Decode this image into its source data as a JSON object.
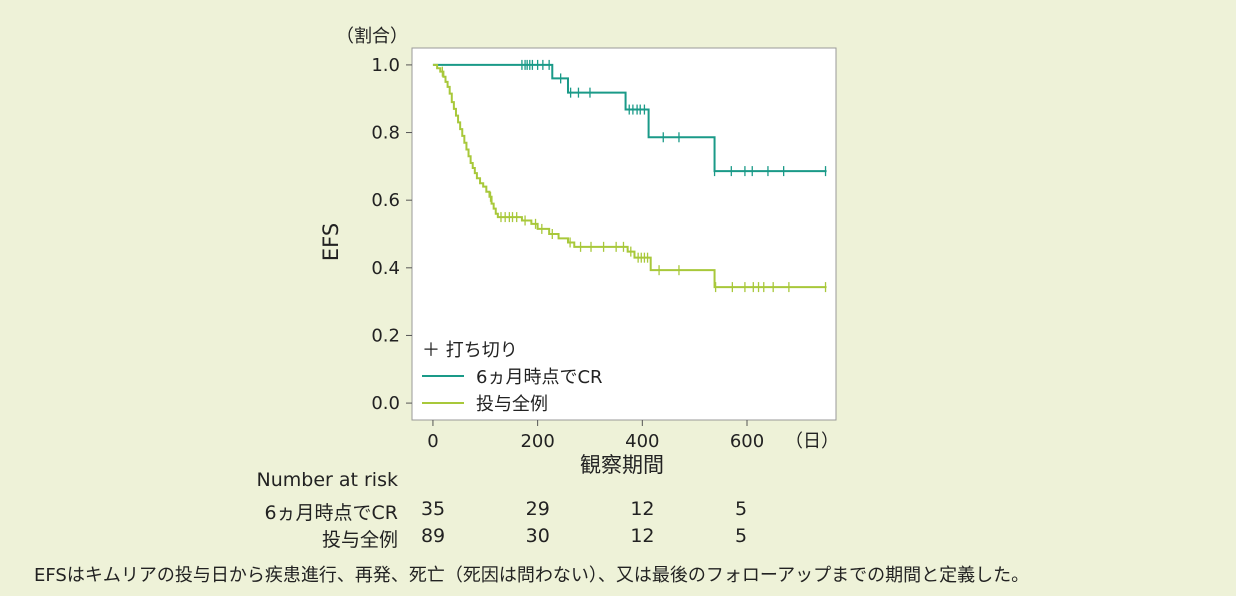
{
  "chart_data": {
    "type": "line",
    "subtype": "kaplan-meier",
    "ylabel": "EFS",
    "y_unit": "（割合）",
    "xlabel": "観察期間",
    "x_unit": "（日）",
    "xlim": [
      -40,
      770
    ],
    "ylim": [
      -0.05,
      1.05
    ],
    "x_ticks": [
      0,
      200,
      400,
      600
    ],
    "y_ticks": [
      0.0,
      0.2,
      0.4,
      0.6,
      0.8,
      1.0
    ],
    "y_tick_labels": [
      "0.0",
      "0.2",
      "0.4",
      "0.6",
      "0.8",
      "1.0"
    ],
    "grid": false,
    "legend_position": "bottom-left",
    "censor_legend": "＋ 打ち切り",
    "series": [
      {
        "name": "6ヵ月時点でCR",
        "color": "#1a9a88",
        "steps": [
          [
            0,
            1.0
          ],
          [
            228,
            0.96
          ],
          [
            258,
            0.918
          ],
          [
            368,
            0.868
          ],
          [
            412,
            0.786
          ],
          [
            538,
            0.686
          ],
          [
            752,
            0.686
          ]
        ],
        "censored": [
          [
            170,
            1.0
          ],
          [
            176,
            1.0
          ],
          [
            180,
            1.0
          ],
          [
            185,
            1.0
          ],
          [
            190,
            1.0
          ],
          [
            200,
            1.0
          ],
          [
            210,
            1.0
          ],
          [
            222,
            1.0
          ],
          [
            244,
            0.96
          ],
          [
            263,
            0.918
          ],
          [
            278,
            0.918
          ],
          [
            300,
            0.918
          ],
          [
            375,
            0.868
          ],
          [
            382,
            0.868
          ],
          [
            390,
            0.868
          ],
          [
            396,
            0.868
          ],
          [
            404,
            0.868
          ],
          [
            440,
            0.786
          ],
          [
            470,
            0.786
          ],
          [
            538,
            0.686
          ],
          [
            570,
            0.686
          ],
          [
            596,
            0.686
          ],
          [
            610,
            0.686
          ],
          [
            640,
            0.686
          ],
          [
            670,
            0.686
          ],
          [
            750,
            0.686
          ]
        ]
      },
      {
        "name": "投与全例",
        "color": "#a8c83a",
        "steps": [
          [
            0,
            1.0
          ],
          [
            8,
            0.99
          ],
          [
            14,
            0.98
          ],
          [
            20,
            0.965
          ],
          [
            24,
            0.95
          ],
          [
            28,
            0.935
          ],
          [
            32,
            0.915
          ],
          [
            36,
            0.89
          ],
          [
            40,
            0.87
          ],
          [
            44,
            0.85
          ],
          [
            48,
            0.83
          ],
          [
            52,
            0.81
          ],
          [
            56,
            0.79
          ],
          [
            60,
            0.77
          ],
          [
            64,
            0.75
          ],
          [
            68,
            0.73
          ],
          [
            72,
            0.71
          ],
          [
            76,
            0.695
          ],
          [
            80,
            0.68
          ],
          [
            84,
            0.665
          ],
          [
            90,
            0.65
          ],
          [
            96,
            0.64
          ],
          [
            102,
            0.625
          ],
          [
            108,
            0.61
          ],
          [
            112,
            0.59
          ],
          [
            116,
            0.575
          ],
          [
            120,
            0.56
          ],
          [
            124,
            0.55
          ],
          [
            170,
            0.54
          ],
          [
            188,
            0.53
          ],
          [
            200,
            0.515
          ],
          [
            222,
            0.5
          ],
          [
            240,
            0.487
          ],
          [
            258,
            0.475
          ],
          [
            270,
            0.462
          ],
          [
            372,
            0.448
          ],
          [
            385,
            0.43
          ],
          [
            416,
            0.393
          ],
          [
            538,
            0.343
          ],
          [
            752,
            0.343
          ]
        ],
        "censored": [
          [
            18,
            0.98
          ],
          [
            110,
            0.61
          ],
          [
            130,
            0.55
          ],
          [
            138,
            0.55
          ],
          [
            146,
            0.55
          ],
          [
            152,
            0.55
          ],
          [
            160,
            0.55
          ],
          [
            176,
            0.54
          ],
          [
            196,
            0.53
          ],
          [
            208,
            0.515
          ],
          [
            228,
            0.5
          ],
          [
            262,
            0.475
          ],
          [
            282,
            0.462
          ],
          [
            302,
            0.462
          ],
          [
            326,
            0.462
          ],
          [
            350,
            0.462
          ],
          [
            364,
            0.462
          ],
          [
            378,
            0.448
          ],
          [
            392,
            0.43
          ],
          [
            398,
            0.43
          ],
          [
            404,
            0.43
          ],
          [
            410,
            0.43
          ],
          [
            432,
            0.393
          ],
          [
            470,
            0.393
          ],
          [
            540,
            0.343
          ],
          [
            572,
            0.343
          ],
          [
            596,
            0.343
          ],
          [
            612,
            0.343
          ],
          [
            622,
            0.343
          ],
          [
            632,
            0.343
          ],
          [
            650,
            0.343
          ],
          [
            680,
            0.343
          ],
          [
            750,
            0.343
          ]
        ]
      }
    ]
  },
  "risk_table": {
    "header": "Number at risk",
    "x_positions": [
      0,
      200,
      400,
      600
    ],
    "rows": [
      {
        "label": "6ヵ月時点でCR",
        "values": [
          "35",
          "29",
          "12",
          "5"
        ]
      },
      {
        "label": "投与全例",
        "values": [
          "89",
          "30",
          "12",
          "5"
        ]
      }
    ]
  },
  "footnote": "EFSはキムリアの投与日から疾患進行、再発、死亡（死因は問わない）、又は最後のフォローアップまでの期間と定義した。"
}
